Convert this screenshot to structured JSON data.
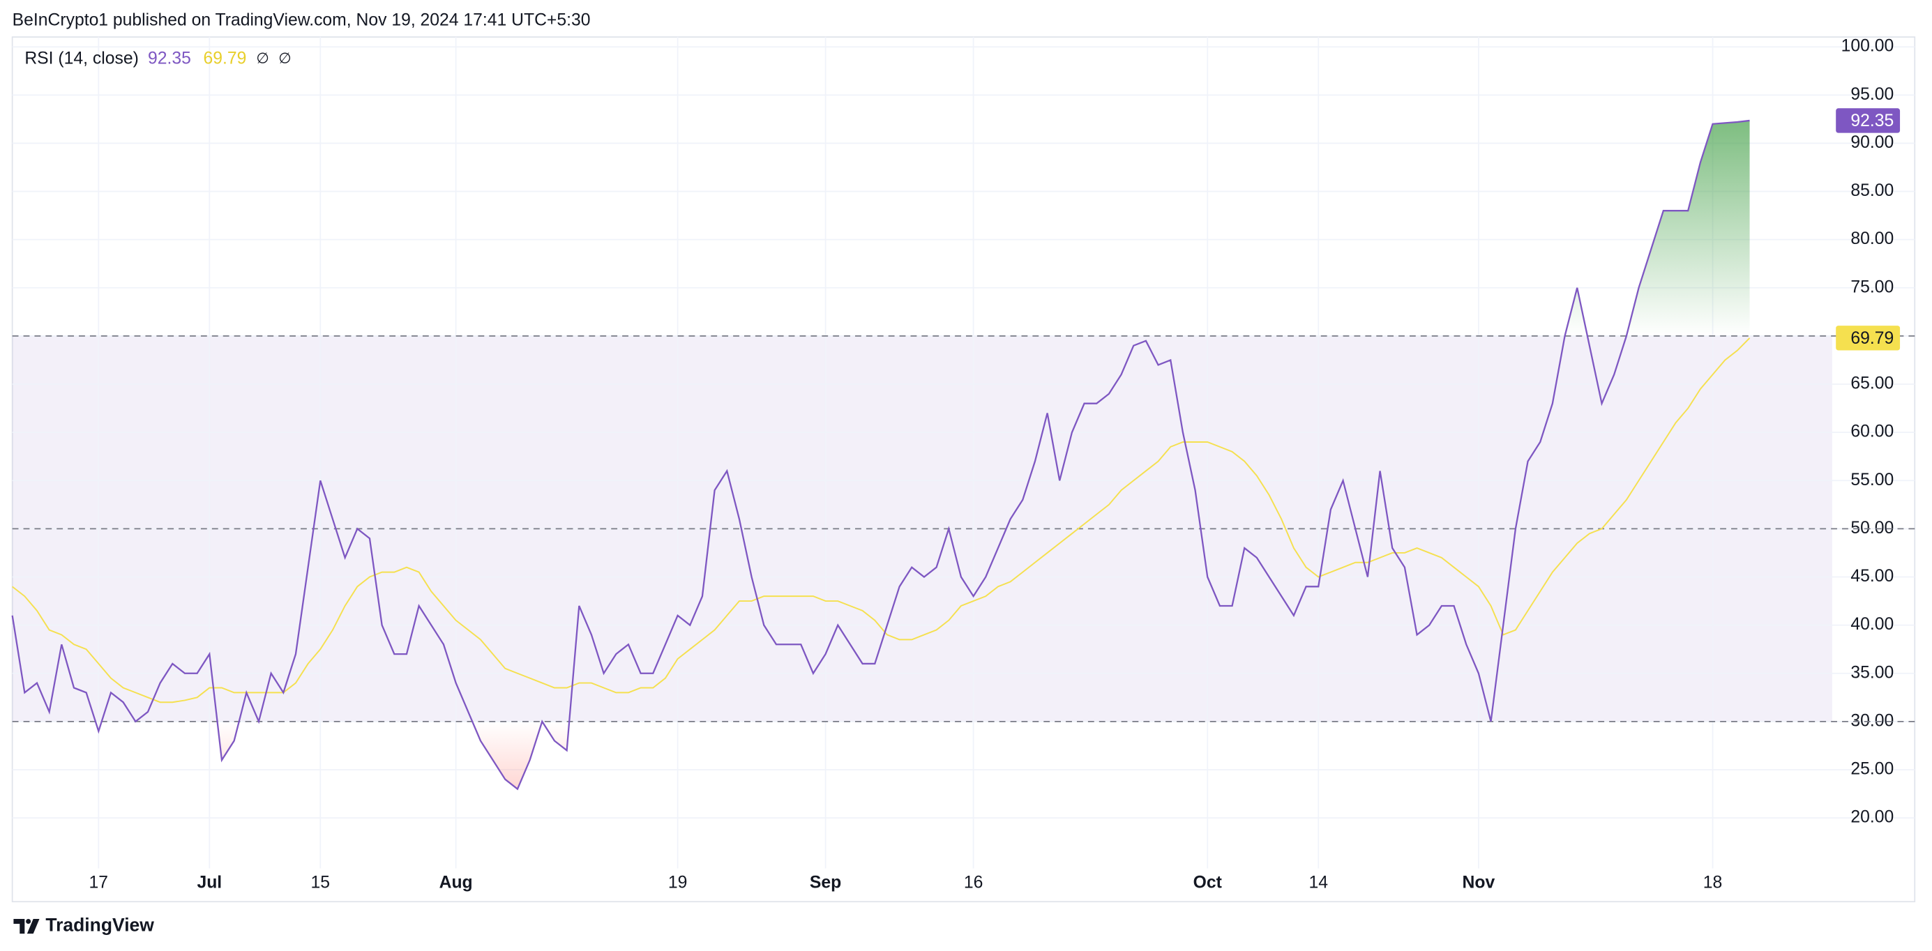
{
  "header": "BeInCrypto1 published on TradingView.com, Nov 19, 2024 17:41 UTC+5:30",
  "footer": "TradingView",
  "chart_data": {
    "type": "line",
    "legend_flags": [
      "∅",
      "∅"
    ],
    "categories": [
      null,
      null,
      null,
      null,
      null,
      null,
      null,
      "17",
      null,
      null,
      null,
      null,
      null,
      null,
      null,
      null,
      "Jul",
      null,
      null,
      null,
      null,
      null,
      null,
      null,
      null,
      "15",
      null,
      null,
      null,
      null,
      null,
      null,
      null,
      null,
      null,
      null,
      "Aug",
      null,
      null,
      null,
      null,
      null,
      null,
      null,
      null,
      null,
      null,
      null,
      null,
      null,
      null,
      null,
      null,
      null,
      "19",
      null,
      null,
      null,
      null,
      null,
      null,
      null,
      null,
      null,
      null,
      null,
      "Sep",
      null,
      null,
      null,
      null,
      null,
      null,
      null,
      null,
      null,
      null,
      null,
      "16",
      null,
      null,
      null,
      null,
      null,
      null,
      null,
      null,
      null,
      null,
      null,
      null,
      null,
      null,
      null,
      null,
      null,
      null,
      "Oct",
      null,
      null,
      null,
      null,
      null,
      null,
      null,
      null,
      "14",
      null,
      null,
      null,
      null,
      null,
      null,
      null,
      null,
      null,
      null,
      null,
      null,
      "Nov",
      null,
      null,
      null,
      null,
      null,
      null,
      null,
      null,
      null,
      null,
      null,
      null,
      null,
      null,
      null,
      null,
      null,
      null,
      "18",
      null,
      null,
      null
    ],
    "series": [
      {
        "name": "RSI (14, close)",
        "color": "#7e57c2",
        "values": [
          41,
          33,
          34,
          31,
          38,
          33.5,
          33,
          29,
          33,
          32,
          30,
          31,
          34,
          36,
          35,
          35,
          37,
          26,
          28,
          33,
          30,
          35,
          33,
          37,
          46,
          55,
          51,
          47,
          50,
          49,
          40,
          37,
          37,
          42,
          40,
          38,
          34,
          31,
          28,
          26,
          24,
          23,
          26,
          30,
          28,
          27,
          42,
          39,
          35,
          37,
          38,
          35,
          35,
          38,
          41,
          40,
          43,
          54,
          56,
          51,
          45,
          40,
          38,
          38,
          38,
          35,
          37,
          40,
          38,
          36,
          36,
          40,
          44,
          46,
          45,
          46,
          50,
          45,
          43,
          45,
          48,
          51,
          53,
          57,
          62,
          55,
          60,
          63,
          63,
          64,
          66,
          69,
          69.5,
          67,
          67.5,
          60,
          54,
          45,
          42,
          42,
          48,
          47,
          45,
          43,
          41,
          44,
          44,
          52,
          55,
          50,
          45,
          56,
          48,
          46,
          39,
          40,
          42,
          42,
          38,
          35,
          30,
          40,
          50,
          57,
          59,
          63,
          70,
          75,
          69,
          63,
          66,
          70,
          75,
          79,
          83,
          83,
          83,
          88,
          92,
          92.1,
          92.2,
          92.35
        ]
      },
      {
        "color": "#f5e04f",
        "values": [
          44,
          43,
          41.5,
          39.5,
          39,
          38,
          37.5,
          36,
          34.5,
          33.5,
          33,
          32.5,
          32,
          32,
          32.2,
          32.5,
          33.5,
          33.5,
          33,
          33,
          33,
          33,
          33,
          34,
          36,
          37.5,
          39.5,
          42,
          44,
          45,
          45.5,
          45.5,
          46,
          45.5,
          43.5,
          42,
          40.5,
          39.5,
          38.5,
          37,
          35.5,
          35,
          34.5,
          34,
          33.5,
          33.5,
          34,
          34,
          33.5,
          33,
          33,
          33.5,
          33.5,
          34.5,
          36.5,
          37.5,
          38.5,
          39.5,
          41,
          42.5,
          42.5,
          43,
          43,
          43,
          43,
          43,
          42.5,
          42.5,
          42,
          41.5,
          40.5,
          39,
          38.5,
          38.5,
          39,
          39.5,
          40.5,
          42,
          42.5,
          43,
          44,
          44.5,
          45.5,
          46.5,
          47.5,
          48.5,
          49.5,
          50.5,
          51.5,
          52.5,
          54,
          55,
          56,
          57,
          58.5,
          59,
          59,
          59,
          58.5,
          58,
          57,
          55.5,
          53.5,
          51,
          48,
          46,
          45,
          45.5,
          46,
          46.5,
          46.5,
          47,
          47.5,
          47.5,
          48,
          47.5,
          47,
          46,
          45,
          44,
          42,
          39,
          39.5,
          41.5,
          43.5,
          45.5,
          47,
          48.5,
          49.5,
          50,
          51.5,
          53,
          55,
          57,
          59,
          61,
          62.5,
          64.5,
          66,
          67.5,
          68.5,
          69.79
        ]
      }
    ],
    "levels": [
      70,
      50,
      30
    ],
    "ylim": [
      14.76,
      101.02
    ],
    "yticks": [
      {
        "value": 20,
        "label": "20.00"
      },
      {
        "value": 25,
        "label": "25.00"
      },
      {
        "value": 30,
        "label": "30.00"
      },
      {
        "value": 35,
        "label": "35.00"
      },
      {
        "value": 40,
        "label": "40.00"
      },
      {
        "value": 45,
        "label": "45.00"
      },
      {
        "value": 50,
        "label": "50.00"
      },
      {
        "value": 55,
        "label": "55.00"
      },
      {
        "value": 60,
        "label": "60.00"
      },
      {
        "value": 65,
        "label": "65.00"
      },
      {
        "value": 70,
        "label": "70.00"
      },
      {
        "value": 75,
        "label": "75.00"
      },
      {
        "value": 80,
        "label": "80.00"
      },
      {
        "value": 85,
        "label": "85.00"
      },
      {
        "value": 90,
        "label": "90.00"
      },
      {
        "value": 95,
        "label": "95.00"
      },
      {
        "value": 100,
        "label": "100.00"
      }
    ],
    "grid": true
  }
}
